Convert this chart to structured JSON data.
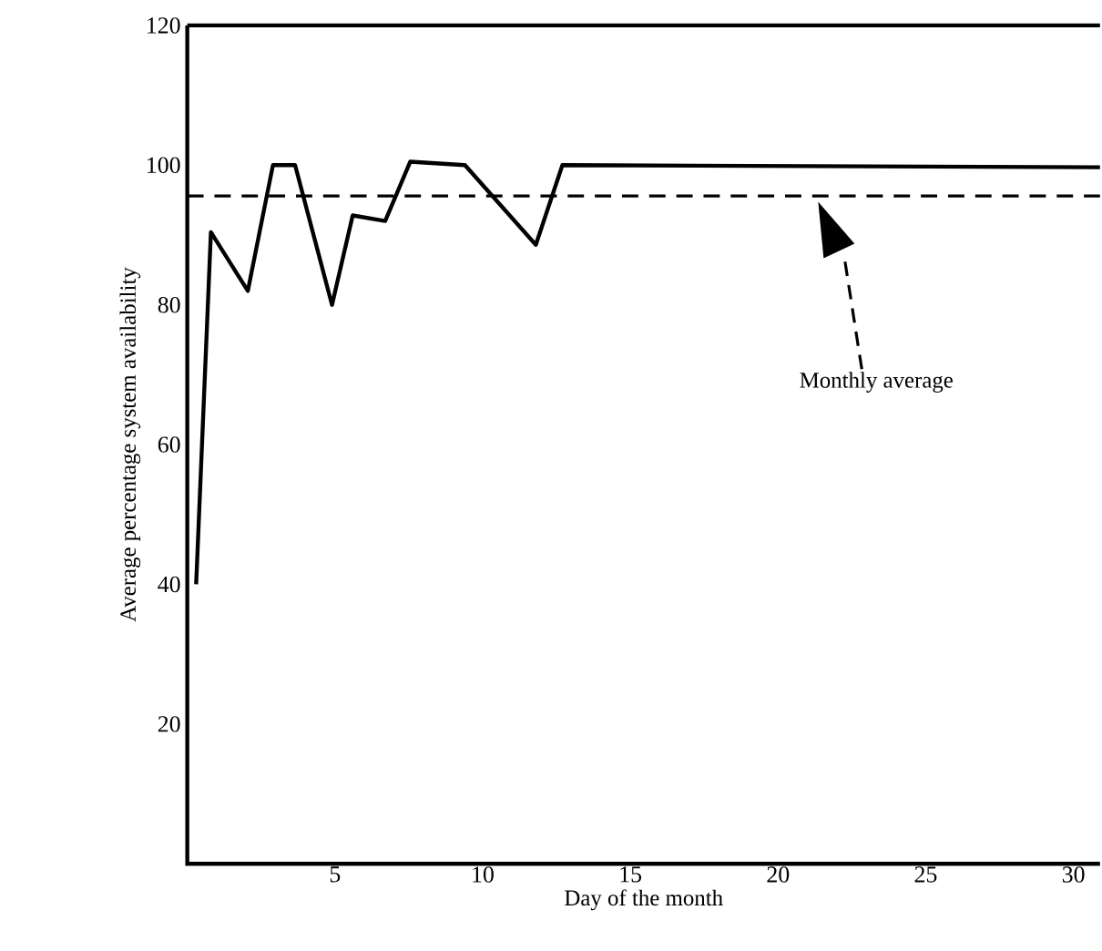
{
  "chart_data": {
    "type": "line",
    "xlabel": "Day of the month",
    "ylabel": "Average percentage system availability",
    "x": [
      0.3,
      0.8,
      2.05,
      2.9,
      3.65,
      4.9,
      5.6,
      6.7,
      7.55,
      9.4,
      11.8,
      12.7,
      30.9
    ],
    "series": [
      {
        "color": "#000000",
        "values": [
          40,
          90.4,
          82,
          100,
          100,
          80,
          92.8,
          92,
          100.5,
          100,
          88.6,
          100,
          99.7
        ]
      }
    ],
    "xlim": [
      0,
      30.9
    ],
    "ylim": [
      0,
      120
    ],
    "xticks": [
      5,
      10,
      15,
      20,
      25,
      30
    ],
    "yticks": [
      20,
      40,
      60,
      80,
      100,
      120
    ],
    "ref_lines": [
      {
        "axis": "y",
        "value": 95.6,
        "color": "#000000",
        "line_style": "dashed"
      }
    ],
    "annotations": [
      "Monthly average"
    ],
    "grid": false,
    "marker": "none",
    "line_style": "solid"
  }
}
